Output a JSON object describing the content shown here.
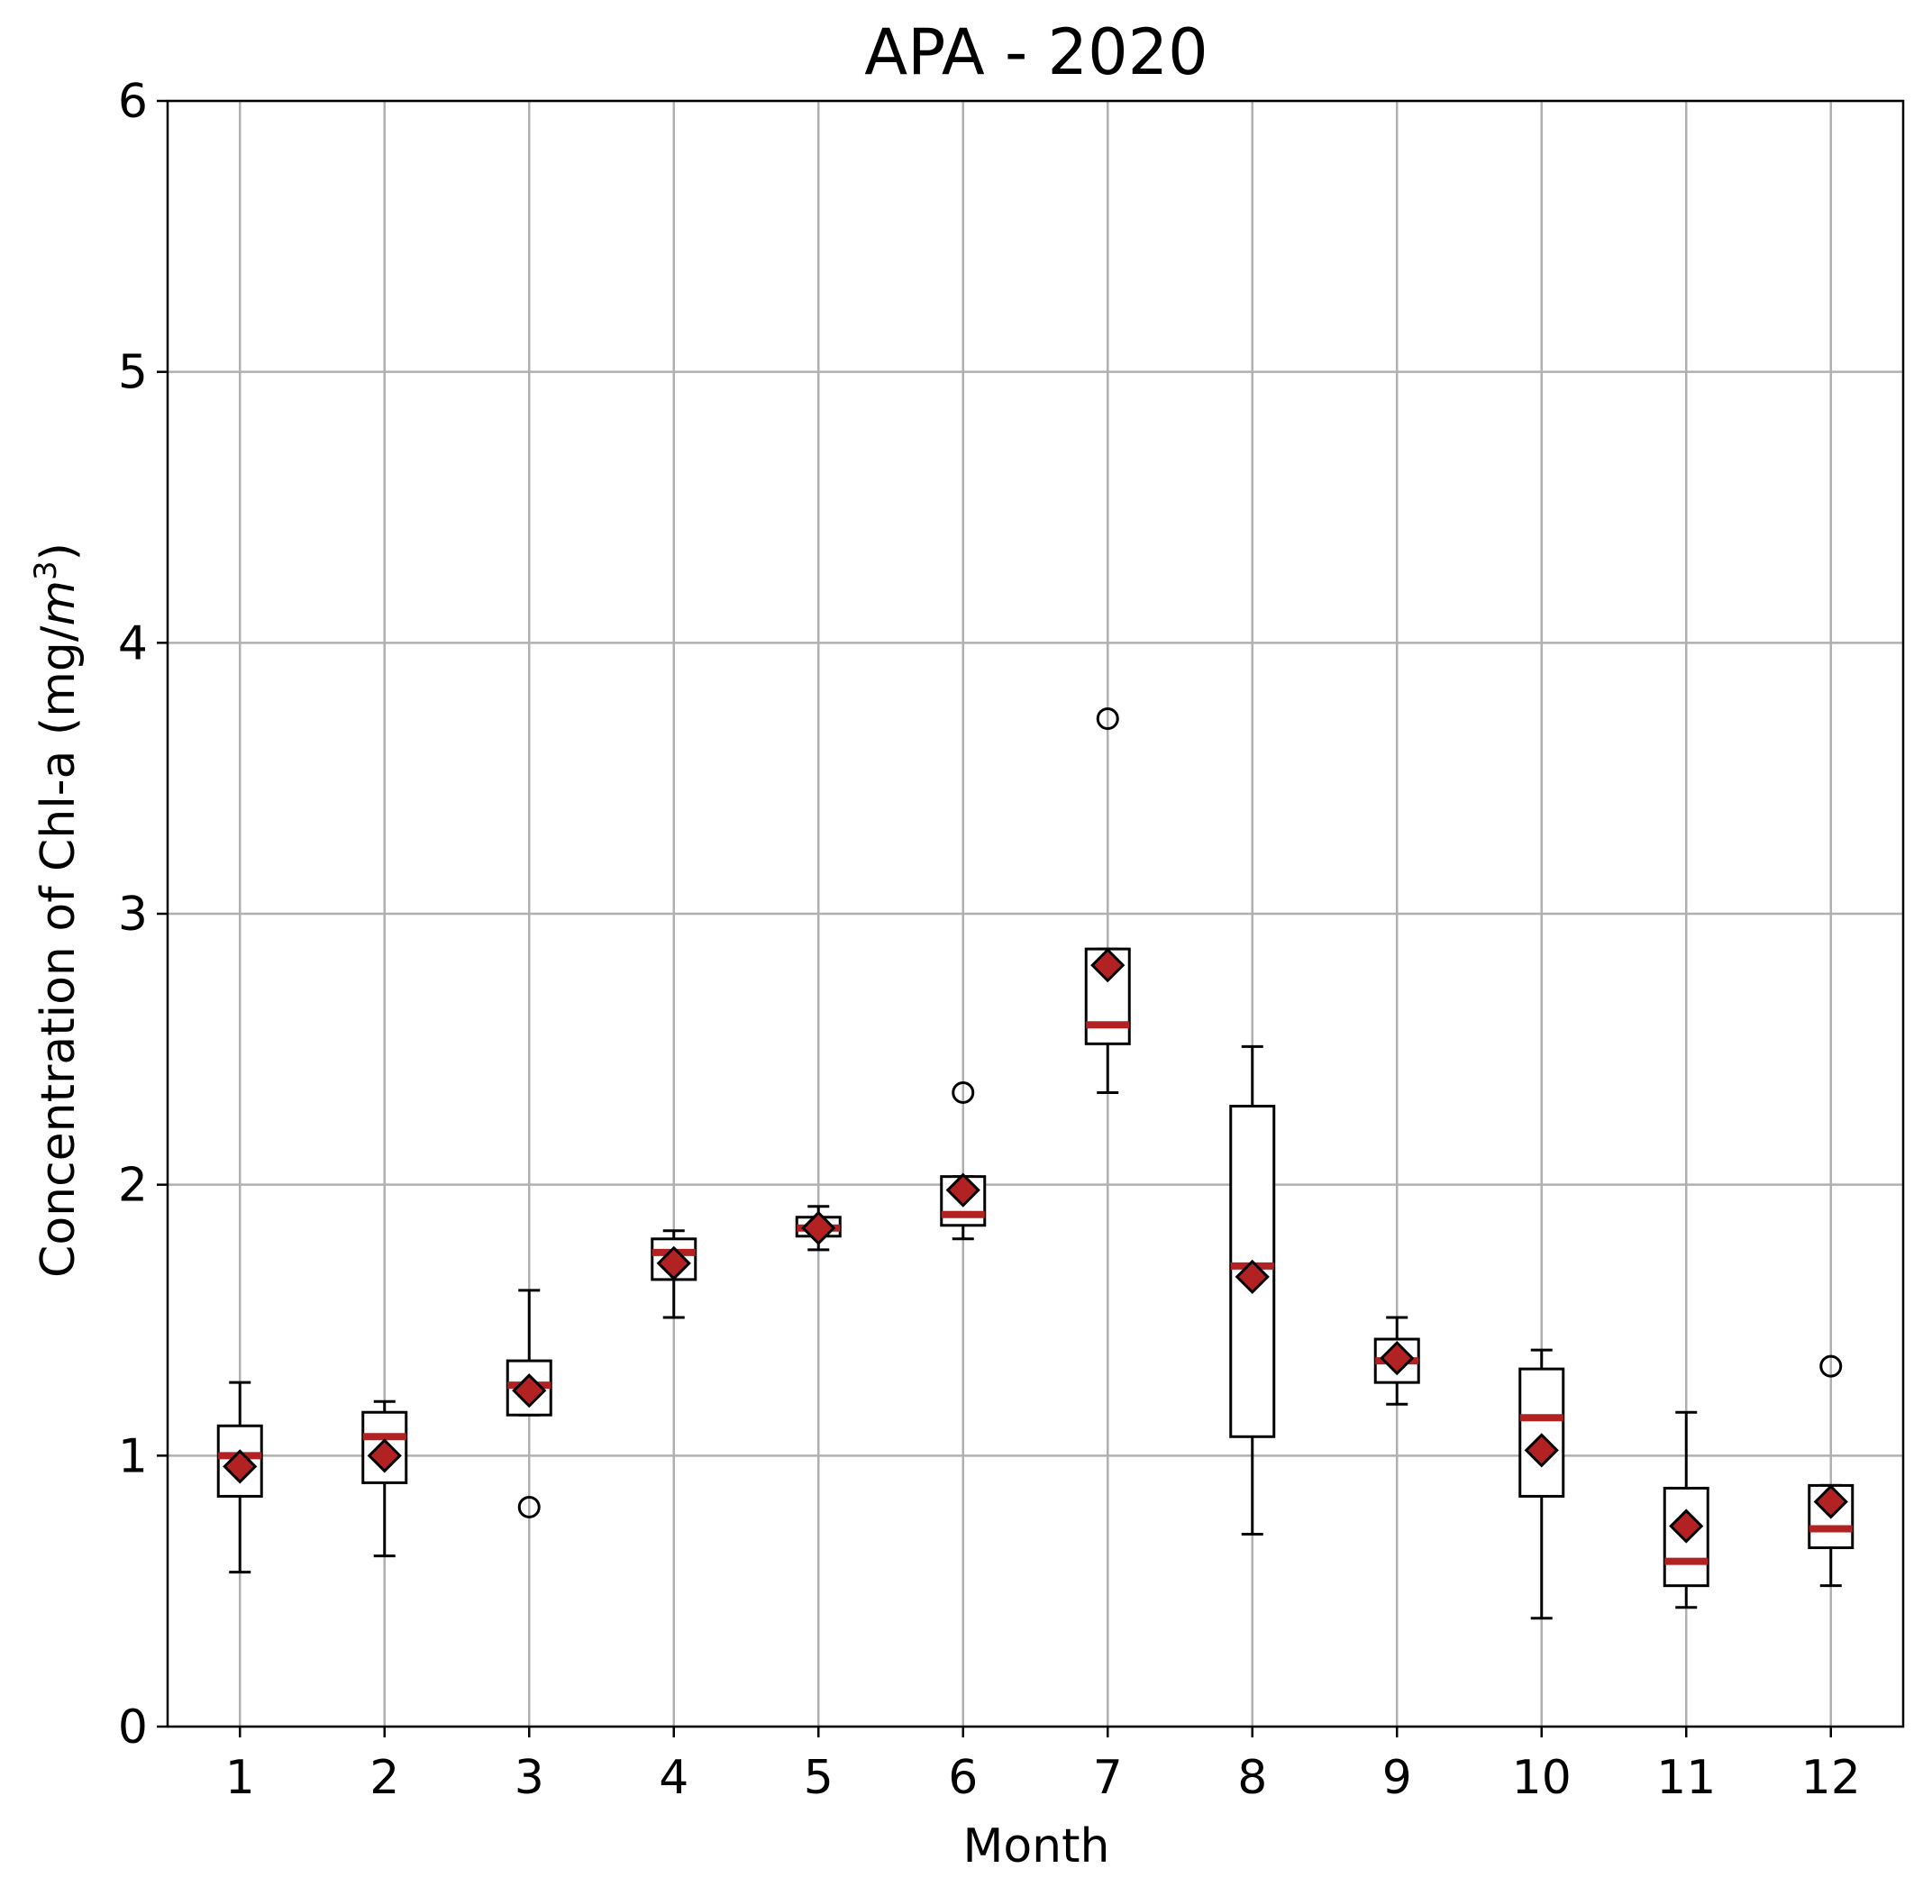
{
  "chart_data": {
    "type": "box",
    "title": "APA - 2020",
    "xlabel": "Month",
    "ylabel_prefix": "Concentration of Chl-a (mg/",
    "ylabel_unit_base": "m",
    "ylabel_unit_exp": "3",
    "ylabel_suffix": ")",
    "ylim": [
      0,
      6
    ],
    "yticks": [
      "0",
      "1",
      "2",
      "3",
      "4",
      "5",
      "6"
    ],
    "grid": true,
    "categories": [
      "1",
      "2",
      "3",
      "4",
      "5",
      "6",
      "7",
      "8",
      "9",
      "10",
      "11",
      "12"
    ],
    "boxes": [
      {
        "month": "1",
        "whisker_low": 0.57,
        "q1": 0.85,
        "median": 1.0,
        "q3": 1.11,
        "whisker_high": 1.27,
        "mean": 0.96,
        "outliers": []
      },
      {
        "month": "2",
        "whisker_low": 0.63,
        "q1": 0.9,
        "median": 1.07,
        "q3": 1.16,
        "whisker_high": 1.2,
        "mean": 1.0,
        "outliers": []
      },
      {
        "month": "3",
        "whisker_low": 1.15,
        "q1": 1.15,
        "median": 1.26,
        "q3": 1.35,
        "whisker_high": 1.61,
        "mean": 1.24,
        "outliers": [
          0.81
        ]
      },
      {
        "month": "4",
        "whisker_low": 1.51,
        "q1": 1.65,
        "median": 1.75,
        "q3": 1.8,
        "whisker_high": 1.83,
        "mean": 1.71,
        "outliers": []
      },
      {
        "month": "5",
        "whisker_low": 1.76,
        "q1": 1.81,
        "median": 1.84,
        "q3": 1.88,
        "whisker_high": 1.92,
        "mean": 1.84,
        "outliers": []
      },
      {
        "month": "6",
        "whisker_low": 1.8,
        "q1": 1.85,
        "median": 1.89,
        "q3": 2.03,
        "whisker_high": 2.03,
        "mean": 1.98,
        "outliers": [
          2.34
        ]
      },
      {
        "month": "7",
        "whisker_low": 2.34,
        "q1": 2.52,
        "median": 2.59,
        "q3": 2.87,
        "whisker_high": 2.87,
        "mean": 2.81,
        "outliers": [
          3.72
        ]
      },
      {
        "month": "8",
        "whisker_low": 0.71,
        "q1": 1.07,
        "median": 1.7,
        "q3": 2.29,
        "whisker_high": 2.51,
        "mean": 1.66,
        "outliers": []
      },
      {
        "month": "9",
        "whisker_low": 1.19,
        "q1": 1.27,
        "median": 1.35,
        "q3": 1.43,
        "whisker_high": 1.51,
        "mean": 1.36,
        "outliers": []
      },
      {
        "month": "10",
        "whisker_low": 0.4,
        "q1": 0.85,
        "median": 1.14,
        "q3": 1.32,
        "whisker_high": 1.39,
        "mean": 1.02,
        "outliers": []
      },
      {
        "month": "11",
        "whisker_low": 0.44,
        "q1": 0.52,
        "median": 0.61,
        "q3": 0.88,
        "whisker_high": 1.16,
        "mean": 0.74,
        "outliers": []
      },
      {
        "month": "12",
        "whisker_low": 0.52,
        "q1": 0.66,
        "median": 0.73,
        "q3": 0.89,
        "whisker_high": 0.89,
        "mean": 0.83,
        "outliers": [
          1.33
        ]
      }
    ],
    "colors": {
      "median": "#b22222",
      "mean_fill": "#b22222",
      "mean_edge": "#000000",
      "box_edge": "#000000",
      "grid": "#b0b0b0",
      "background": "#ffffff"
    }
  }
}
